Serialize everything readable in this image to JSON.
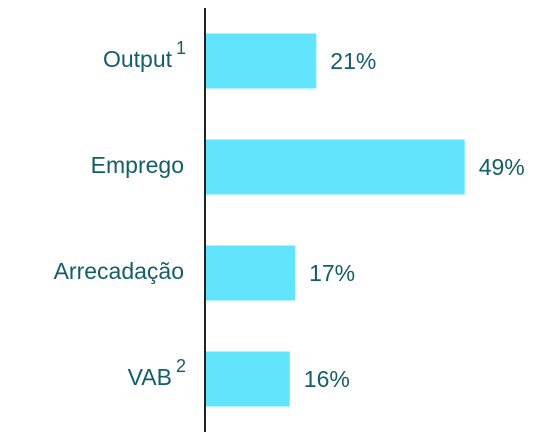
{
  "chart_data": {
    "type": "bar",
    "orientation": "horizontal",
    "categories": [
      "Output",
      "Emprego",
      "Arrecadação",
      "VAB"
    ],
    "category_notes": [
      "1",
      null,
      null,
      "2"
    ],
    "values": [
      21,
      49,
      17,
      16
    ],
    "value_labels": [
      "21%",
      "49%",
      "17%",
      "16%"
    ],
    "color": "#62e5fc",
    "xlim": [
      0,
      50
    ]
  }
}
